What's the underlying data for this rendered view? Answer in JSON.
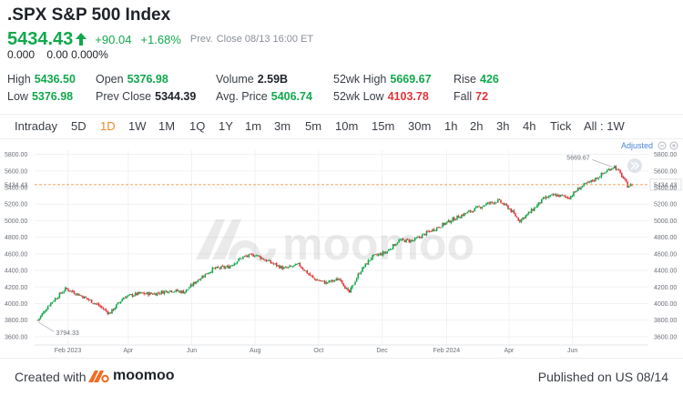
{
  "header": {
    "title": ".SPX S&P 500 Index",
    "price": "5434.43",
    "change": "+90.04",
    "change_pct": "+1.68%",
    "prev_label": "Prev.",
    "close_info": "Close 08/13 16:00 ET",
    "sub_value": "0.000",
    "sub_change": "0.00 0.000%"
  },
  "stats": {
    "high_label": "High",
    "high": "5436.50",
    "low_label": "Low",
    "low": "5376.98",
    "open_label": "Open",
    "open": "5376.98",
    "prev_close_label": "Prev Close",
    "prev_close": "5344.39",
    "volume_label": "Volume",
    "volume": "2.59B",
    "avg_price_label": "Avg. Price",
    "avg_price": "5406.74",
    "wk52_high_label": "52wk High",
    "wk52_high": "5669.67",
    "wk52_low_label": "52wk Low",
    "wk52_low": "4103.78",
    "rise_label": "Rise",
    "rise": "426",
    "fall_label": "Fall",
    "fall": "72"
  },
  "tabs": [
    "Intraday",
    "5D",
    "1D",
    "1W",
    "1M",
    "1Q",
    "1Y",
    "1m",
    "3m",
    "5m",
    "10m",
    "15m",
    "30m",
    "1h",
    "2h",
    "3h",
    "4h",
    "Tick",
    "All : 1W"
  ],
  "active_tab": "1D",
  "adjusted_label": "Adjusted",
  "watermark": "moomoo",
  "footer": {
    "created_label": "Created with",
    "brand": "moomoo",
    "published": "Published on US 08/14"
  },
  "colors": {
    "up": "#11a84d",
    "down": "#e0353b",
    "accent": "#f08a24",
    "ref_line": "#f0a060"
  },
  "chart_data": {
    "type": "candlestick",
    "ylim": [
      3500,
      5850
    ],
    "y_ticks": [
      3600,
      3800,
      4000,
      4200,
      4400,
      4600,
      4800,
      5000,
      5200,
      5400,
      5600,
      5800
    ],
    "y_tick_labels": [
      "3600.00",
      "3800.00",
      "4000.00",
      "4200.00",
      "4400.00",
      "4600.00",
      "4800.00",
      "5000.00",
      "5200.00",
      "5400.00",
      "5600.00",
      "5800.00"
    ],
    "x_labels": [
      {
        "label": "Feb 2023",
        "day": 32
      },
      {
        "label": "Apr",
        "day": 90
      },
      {
        "label": "Jun",
        "day": 151
      },
      {
        "label": "Aug",
        "day": 212
      },
      {
        "label": "Oct",
        "day": 273
      },
      {
        "label": "Dec",
        "day": 334
      },
      {
        "label": "Feb 2024",
        "day": 396
      },
      {
        "label": "Apr",
        "day": 456
      },
      {
        "label": "Jun",
        "day": 517
      }
    ],
    "x_range_days": [
      0,
      590
    ],
    "last_price": 5434.43,
    "last_price_label": "5434.43",
    "max_label": "5669.67",
    "max_point": {
      "day": 557,
      "value": 5669.67
    },
    "min_label": "3794.33",
    "min_point": {
      "day": 3,
      "value": 3794.33
    },
    "path": [
      {
        "day": 3,
        "v": 3800
      },
      {
        "day": 14,
        "v": 3990
      },
      {
        "day": 30,
        "v": 4180
      },
      {
        "day": 44,
        "v": 4100
      },
      {
        "day": 60,
        "v": 3990
      },
      {
        "day": 72,
        "v": 3880
      },
      {
        "day": 86,
        "v": 4080
      },
      {
        "day": 100,
        "v": 4120
      },
      {
        "day": 116,
        "v": 4120
      },
      {
        "day": 130,
        "v": 4160
      },
      {
        "day": 144,
        "v": 4140
      },
      {
        "day": 158,
        "v": 4300
      },
      {
        "day": 172,
        "v": 4420
      },
      {
        "day": 186,
        "v": 4440
      },
      {
        "day": 200,
        "v": 4560
      },
      {
        "day": 212,
        "v": 4590
      },
      {
        "day": 226,
        "v": 4500
      },
      {
        "day": 240,
        "v": 4420
      },
      {
        "day": 254,
        "v": 4470
      },
      {
        "day": 268,
        "v": 4300
      },
      {
        "day": 280,
        "v": 4250
      },
      {
        "day": 294,
        "v": 4300
      },
      {
        "day": 302,
        "v": 4120
      },
      {
        "day": 312,
        "v": 4370
      },
      {
        "day": 324,
        "v": 4560
      },
      {
        "day": 338,
        "v": 4620
      },
      {
        "day": 350,
        "v": 4760
      },
      {
        "day": 364,
        "v": 4760
      },
      {
        "day": 378,
        "v": 4860
      },
      {
        "day": 392,
        "v": 4950
      },
      {
        "day": 406,
        "v": 5040
      },
      {
        "day": 420,
        "v": 5120
      },
      {
        "day": 434,
        "v": 5200
      },
      {
        "day": 446,
        "v": 5240
      },
      {
        "day": 456,
        "v": 5150
      },
      {
        "day": 466,
        "v": 5000
      },
      {
        "day": 476,
        "v": 5100
      },
      {
        "day": 490,
        "v": 5270
      },
      {
        "day": 500,
        "v": 5310
      },
      {
        "day": 514,
        "v": 5280
      },
      {
        "day": 524,
        "v": 5400
      },
      {
        "day": 536,
        "v": 5480
      },
      {
        "day": 548,
        "v": 5580
      },
      {
        "day": 557,
        "v": 5660
      },
      {
        "day": 564,
        "v": 5550
      },
      {
        "day": 570,
        "v": 5420
      },
      {
        "day": 575,
        "v": 5434
      }
    ]
  }
}
